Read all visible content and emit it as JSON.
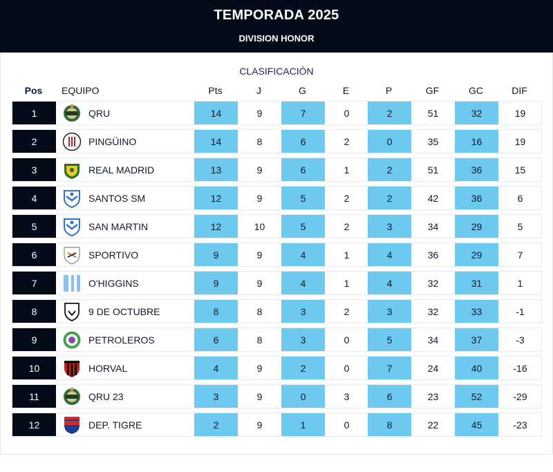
{
  "header": {
    "title": "TEMPORADA 2025",
    "subtitle": "DIVISION HONOR"
  },
  "section_title": "CLASIFICACIÓN",
  "columns": {
    "pos": "Pos",
    "team": "EQUIPO",
    "pts": "Pts",
    "j": "J",
    "g": "G",
    "e": "E",
    "p": "P",
    "gf": "GF",
    "gc": "GC",
    "dif": "DIF"
  },
  "colors": {
    "header_bg": "#040b18",
    "highlight": "#6ec9f0",
    "pos_bg": "#040b18"
  },
  "rows": [
    {
      "pos": "1",
      "team": "QRU",
      "crest": "qru-crest-icon",
      "pts": "14",
      "j": "9",
      "g": "7",
      "e": "0",
      "p": "2",
      "gf": "51",
      "gc": "32",
      "dif": "19"
    },
    {
      "pos": "2",
      "team": "PINGÜINO",
      "crest": "pinguino-crest-icon",
      "pts": "14",
      "j": "8",
      "g": "6",
      "e": "2",
      "p": "0",
      "gf": "35",
      "gc": "16",
      "dif": "19"
    },
    {
      "pos": "3",
      "team": "REAL MADRID",
      "crest": "real-madrid-crest-icon",
      "pts": "13",
      "j": "9",
      "g": "6",
      "e": "1",
      "p": "2",
      "gf": "51",
      "gc": "36",
      "dif": "15"
    },
    {
      "pos": "4",
      "team": "SANTOS SM",
      "crest": "santos-sm-crest-icon",
      "pts": "12",
      "j": "9",
      "g": "5",
      "e": "2",
      "p": "2",
      "gf": "42",
      "gc": "36",
      "dif": "6"
    },
    {
      "pos": "5",
      "team": "SAN MARTIN",
      "crest": "san-martin-crest-icon",
      "pts": "12",
      "j": "10",
      "g": "5",
      "e": "2",
      "p": "3",
      "gf": "34",
      "gc": "29",
      "dif": "5"
    },
    {
      "pos": "6",
      "team": "SPORTIVO",
      "crest": "sportivo-crest-icon",
      "pts": "9",
      "j": "9",
      "g": "4",
      "e": "1",
      "p": "4",
      "gf": "36",
      "gc": "29",
      "dif": "7"
    },
    {
      "pos": "7",
      "team": "O'HIGGINS",
      "crest": "ohiggins-crest-icon",
      "pts": "9",
      "j": "9",
      "g": "4",
      "e": "1",
      "p": "4",
      "gf": "32",
      "gc": "31",
      "dif": "1"
    },
    {
      "pos": "8",
      "team": "9 DE OCTUBRE",
      "crest": "9-de-octubre-crest-icon",
      "pts": "8",
      "j": "8",
      "g": "3",
      "e": "2",
      "p": "3",
      "gf": "32",
      "gc": "33",
      "dif": "-1"
    },
    {
      "pos": "9",
      "team": "PETROLEROS",
      "crest": "petroleros-crest-icon",
      "pts": "6",
      "j": "8",
      "g": "3",
      "e": "0",
      "p": "5",
      "gf": "34",
      "gc": "37",
      "dif": "-3"
    },
    {
      "pos": "10",
      "team": "HORVAL",
      "crest": "horval-crest-icon",
      "pts": "4",
      "j": "9",
      "g": "2",
      "e": "0",
      "p": "7",
      "gf": "24",
      "gc": "40",
      "dif": "-16"
    },
    {
      "pos": "11",
      "team": "QRU 23",
      "crest": "qru-23-crest-icon",
      "pts": "3",
      "j": "9",
      "g": "0",
      "e": "3",
      "p": "6",
      "gf": "23",
      "gc": "52",
      "dif": "-29"
    },
    {
      "pos": "12",
      "team": "DEP. TIGRE",
      "crest": "dep-tigre-crest-icon",
      "pts": "2",
      "j": "9",
      "g": "1",
      "e": "0",
      "p": "8",
      "gf": "22",
      "gc": "45",
      "dif": "-23"
    }
  ]
}
